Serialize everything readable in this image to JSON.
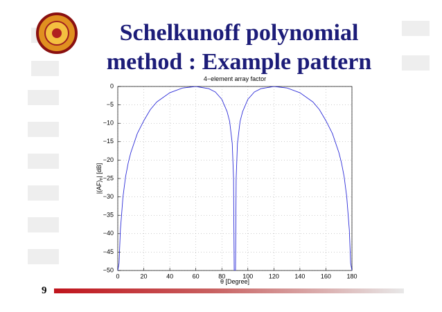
{
  "slide": {
    "title_lines": [
      "Schelkunoff polynomial",
      "method : Example pattern"
    ],
    "page_number": "9"
  },
  "chart_data": {
    "type": "line",
    "title": "4−element array factor",
    "xlabel": "θ [Degree]",
    "ylabel": [
      "|(AF)",
      "n",
      "| [dB]"
    ],
    "x": [
      0,
      1,
      2,
      4,
      6,
      8,
      10,
      15,
      20,
      25,
      30,
      40,
      50,
      60,
      70,
      75,
      80,
      84,
      86,
      88,
      89,
      89.5,
      90.5,
      91,
      92,
      94,
      96,
      100,
      105,
      110,
      120,
      130,
      140,
      150,
      155,
      160,
      165,
      170,
      172,
      174,
      176,
      178,
      179,
      180
    ],
    "series": [
      {
        "name": "AF",
        "color": "#2b2bd8",
        "values": [
          -50,
          -48,
          -39,
          -30,
          -24.5,
          -20.8,
          -18,
          -12.8,
          -9.3,
          -6.3,
          -4.2,
          -1.7,
          -0.4,
          0,
          -0.6,
          -1.5,
          -3.5,
          -6.8,
          -9.5,
          -15.5,
          -25,
          -50,
          -50,
          -25,
          -15.5,
          -9.5,
          -6.8,
          -3.5,
          -1.5,
          -0.6,
          0,
          -0.4,
          -1.7,
          -4.2,
          -6.3,
          -9.3,
          -12.8,
          -18,
          -20.8,
          -24.5,
          -30,
          -39,
          -48,
          -50
        ]
      }
    ],
    "xlim": [
      0,
      180
    ],
    "ylim": [
      -50,
      0
    ],
    "xticks": [
      0,
      20,
      40,
      60,
      80,
      100,
      120,
      140,
      160,
      180
    ],
    "yticks": [
      0,
      {
        "value": -5,
        "label": "−5"
      },
      {
        "value": -10,
        "label": "−10"
      },
      {
        "value": -15,
        "label": "−15"
      },
      {
        "value": -20,
        "label": "−20"
      },
      {
        "value": -25,
        "label": "−25"
      },
      {
        "value": -30,
        "label": "−30"
      },
      {
        "value": -35,
        "label": "−35"
      },
      {
        "value": -40,
        "label": "−40"
      },
      {
        "value": -45,
        "label": "−45"
      },
      {
        "value": -50,
        "label": "−50"
      }
    ],
    "grid": true
  }
}
